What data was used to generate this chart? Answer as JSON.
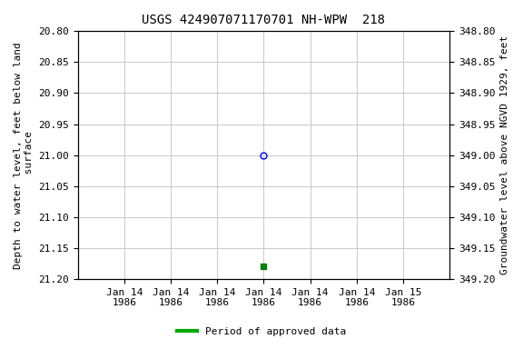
{
  "title": "USGS 424907071170701 NH-WPW  218",
  "ylabel_left": "Depth to water level, feet below land\n surface",
  "ylabel_right": "Groundwater level above NGVD 1929, feet",
  "ylim_left": [
    20.8,
    21.2
  ],
  "ylim_right": [
    349.2,
    348.8
  ],
  "y_ticks_left": [
    20.8,
    20.85,
    20.9,
    20.95,
    21.0,
    21.05,
    21.1,
    21.15,
    21.2
  ],
  "y_ticks_right": [
    349.2,
    349.15,
    349.1,
    349.05,
    349.0,
    348.95,
    348.9,
    348.85,
    348.8
  ],
  "data_open_circle": {
    "x": 4.0,
    "depth": 21.0,
    "color": "blue",
    "marker": "o",
    "facecolor": "none",
    "markersize": 5
  },
  "data_filled_square": {
    "x": 4.0,
    "depth": 21.18,
    "color": "green",
    "marker": "s",
    "facecolor": "green",
    "markersize": 4
  },
  "x_tick_labels": [
    "Jan 14\n1986",
    "Jan 14\n1986",
    "Jan 14\n1986",
    "Jan 14\n1986",
    "Jan 14\n1986",
    "Jan 14\n1986",
    "Jan 15\n1986"
  ],
  "x_ticks": [
    1,
    2,
    3,
    4,
    5,
    6,
    7
  ],
  "xlim": [
    0.0,
    8.0
  ],
  "legend_label": "Period of approved data",
  "legend_color": "#00aa00",
  "font_family": "monospace",
  "title_fontsize": 10,
  "label_fontsize": 8,
  "tick_fontsize": 8,
  "grid_color": "#cccccc",
  "bg_color": "white"
}
